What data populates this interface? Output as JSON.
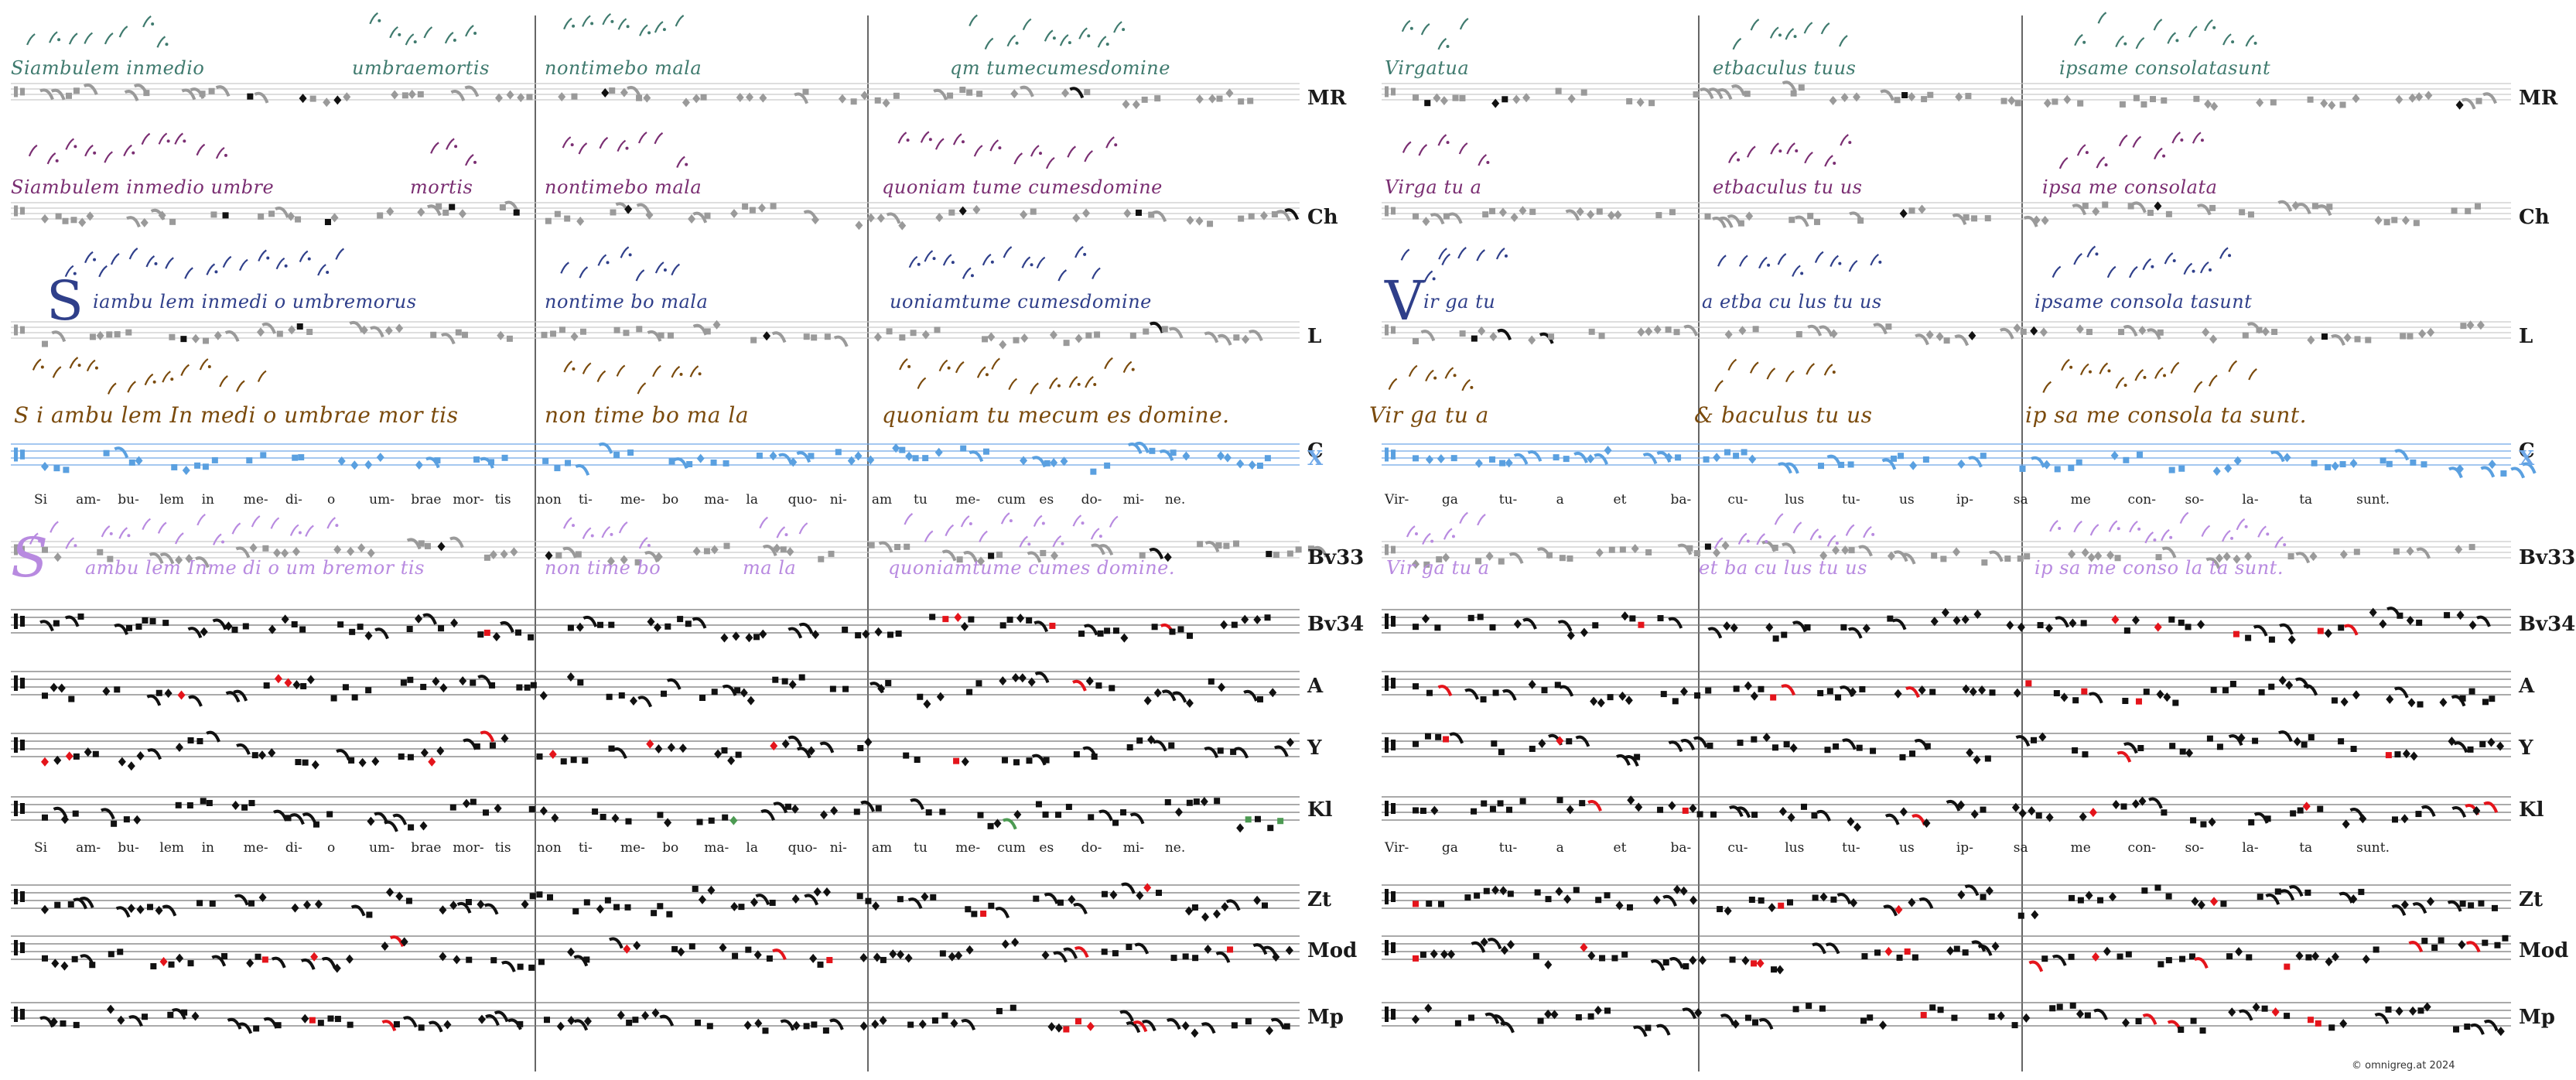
{
  "colors": {
    "mr": "#3f7a6e",
    "ch": "#7a2e72",
    "l": "#2f3f8a",
    "c": "#7a4a0c",
    "x": "#6fa8e8",
    "bv33": "#b88ae0",
    "red": "#e4141b",
    "green": "#4c9a52",
    "blue": "#5aa0e0",
    "grey": "#9a9a9a",
    "black": "#111111",
    "staff": "#9a9a9a"
  },
  "rows": [
    {
      "code": "MR",
      "kind": "ms",
      "color": "mr"
    },
    {
      "code": "Ch",
      "kind": "ms",
      "color": "ch"
    },
    {
      "code": "L",
      "kind": "ms",
      "color": "l"
    },
    {
      "code": "C",
      "kind": "ms",
      "color": "c"
    },
    {
      "code": "X",
      "kind": "x",
      "color": "x"
    },
    {
      "code": "Bv33",
      "kind": "ms",
      "color": "bv33"
    },
    {
      "code": "Bv34",
      "kind": "staff",
      "color": "black"
    },
    {
      "code": "A",
      "kind": "staff",
      "color": "black"
    },
    {
      "code": "Y",
      "kind": "staff",
      "color": "black"
    },
    {
      "code": "Kl",
      "kind": "staff",
      "color": "black"
    },
    {
      "code": "Zt",
      "kind": "staff",
      "color": "black"
    },
    {
      "code": "Mod",
      "kind": "staff",
      "color": "black"
    },
    {
      "code": "Mp",
      "kind": "staff",
      "color": "black"
    }
  ],
  "manuscripts": {
    "left": {
      "MR": [
        "Siambulem inmedio",
        "umbraemortis",
        "nontimebo mala",
        "qm tumecumesdomine"
      ],
      "Ch": [
        "Siambulem inmedio umbre",
        "mortis",
        "nontimebo mala",
        "quoniam tume cumesdomine"
      ],
      "L": [
        "S",
        "iambu lem inmedi o umbremorus",
        "nontime bo mala",
        "uoniamtume cumesdomine"
      ],
      "C": [
        "S i ambu lem In medi o umbrae mor tis",
        "non time bo ma la",
        "quoniam tu mecum es domine."
      ],
      "Bv33": [
        "S",
        "ambu lem Inme di o um bremor tis",
        "non time bo",
        "ma la",
        "quoniamtume cumes domine."
      ]
    },
    "right": {
      "MR": [
        "Virgatua",
        "etbaculus tuus",
        "ipsame consolatasunt"
      ],
      "Ch": [
        "Virga tu a",
        "etbaculus tu us",
        "ipsa me consolata"
      ],
      "L": [
        "V",
        "ir ga tu",
        "a etba cu lus tu us",
        "ipsame consola tasunt"
      ],
      "C": [
        "Vir ga tu a",
        "& baculus tu us",
        "ip sa me consola ta sunt."
      ],
      "Bv33": [
        "Vir ga tu a",
        "et ba cu lus tu us",
        "ip sa me conso la ta sunt."
      ]
    }
  },
  "lyrics": {
    "left": [
      "Si",
      "am-",
      "bu-",
      "lem",
      "in",
      "me-",
      "di-",
      "o",
      "um-",
      "brae",
      "mor-",
      "tis",
      "non",
      "ti-",
      "me-",
      "bo",
      "ma-",
      "la",
      "quo-",
      "ni-",
      "am",
      "tu",
      "me-",
      "cum",
      "es",
      "do-",
      "mi-",
      "ne."
    ],
    "right": [
      "Vir-",
      "ga",
      "tu-",
      "a",
      "et",
      "ba-",
      "cu-",
      "lus",
      "tu-",
      "us",
      "ip-",
      "sa",
      "me",
      "con-",
      "so-",
      "la-",
      "ta",
      "sunt."
    ],
    "left_alt": [
      "Si",
      "am-",
      "bu-",
      "lem",
      "in",
      "me-",
      "di-",
      "o",
      "um-",
      "brae",
      "mor-",
      "tis",
      "non",
      "ti-",
      "me-",
      "bo",
      "ma-",
      "la",
      "quo-",
      "ni-",
      "am",
      "tu",
      "me-",
      "cum",
      "es",
      "do-",
      "mi-",
      "ne."
    ]
  },
  "copyright": "©  omnigreg.at   2024"
}
